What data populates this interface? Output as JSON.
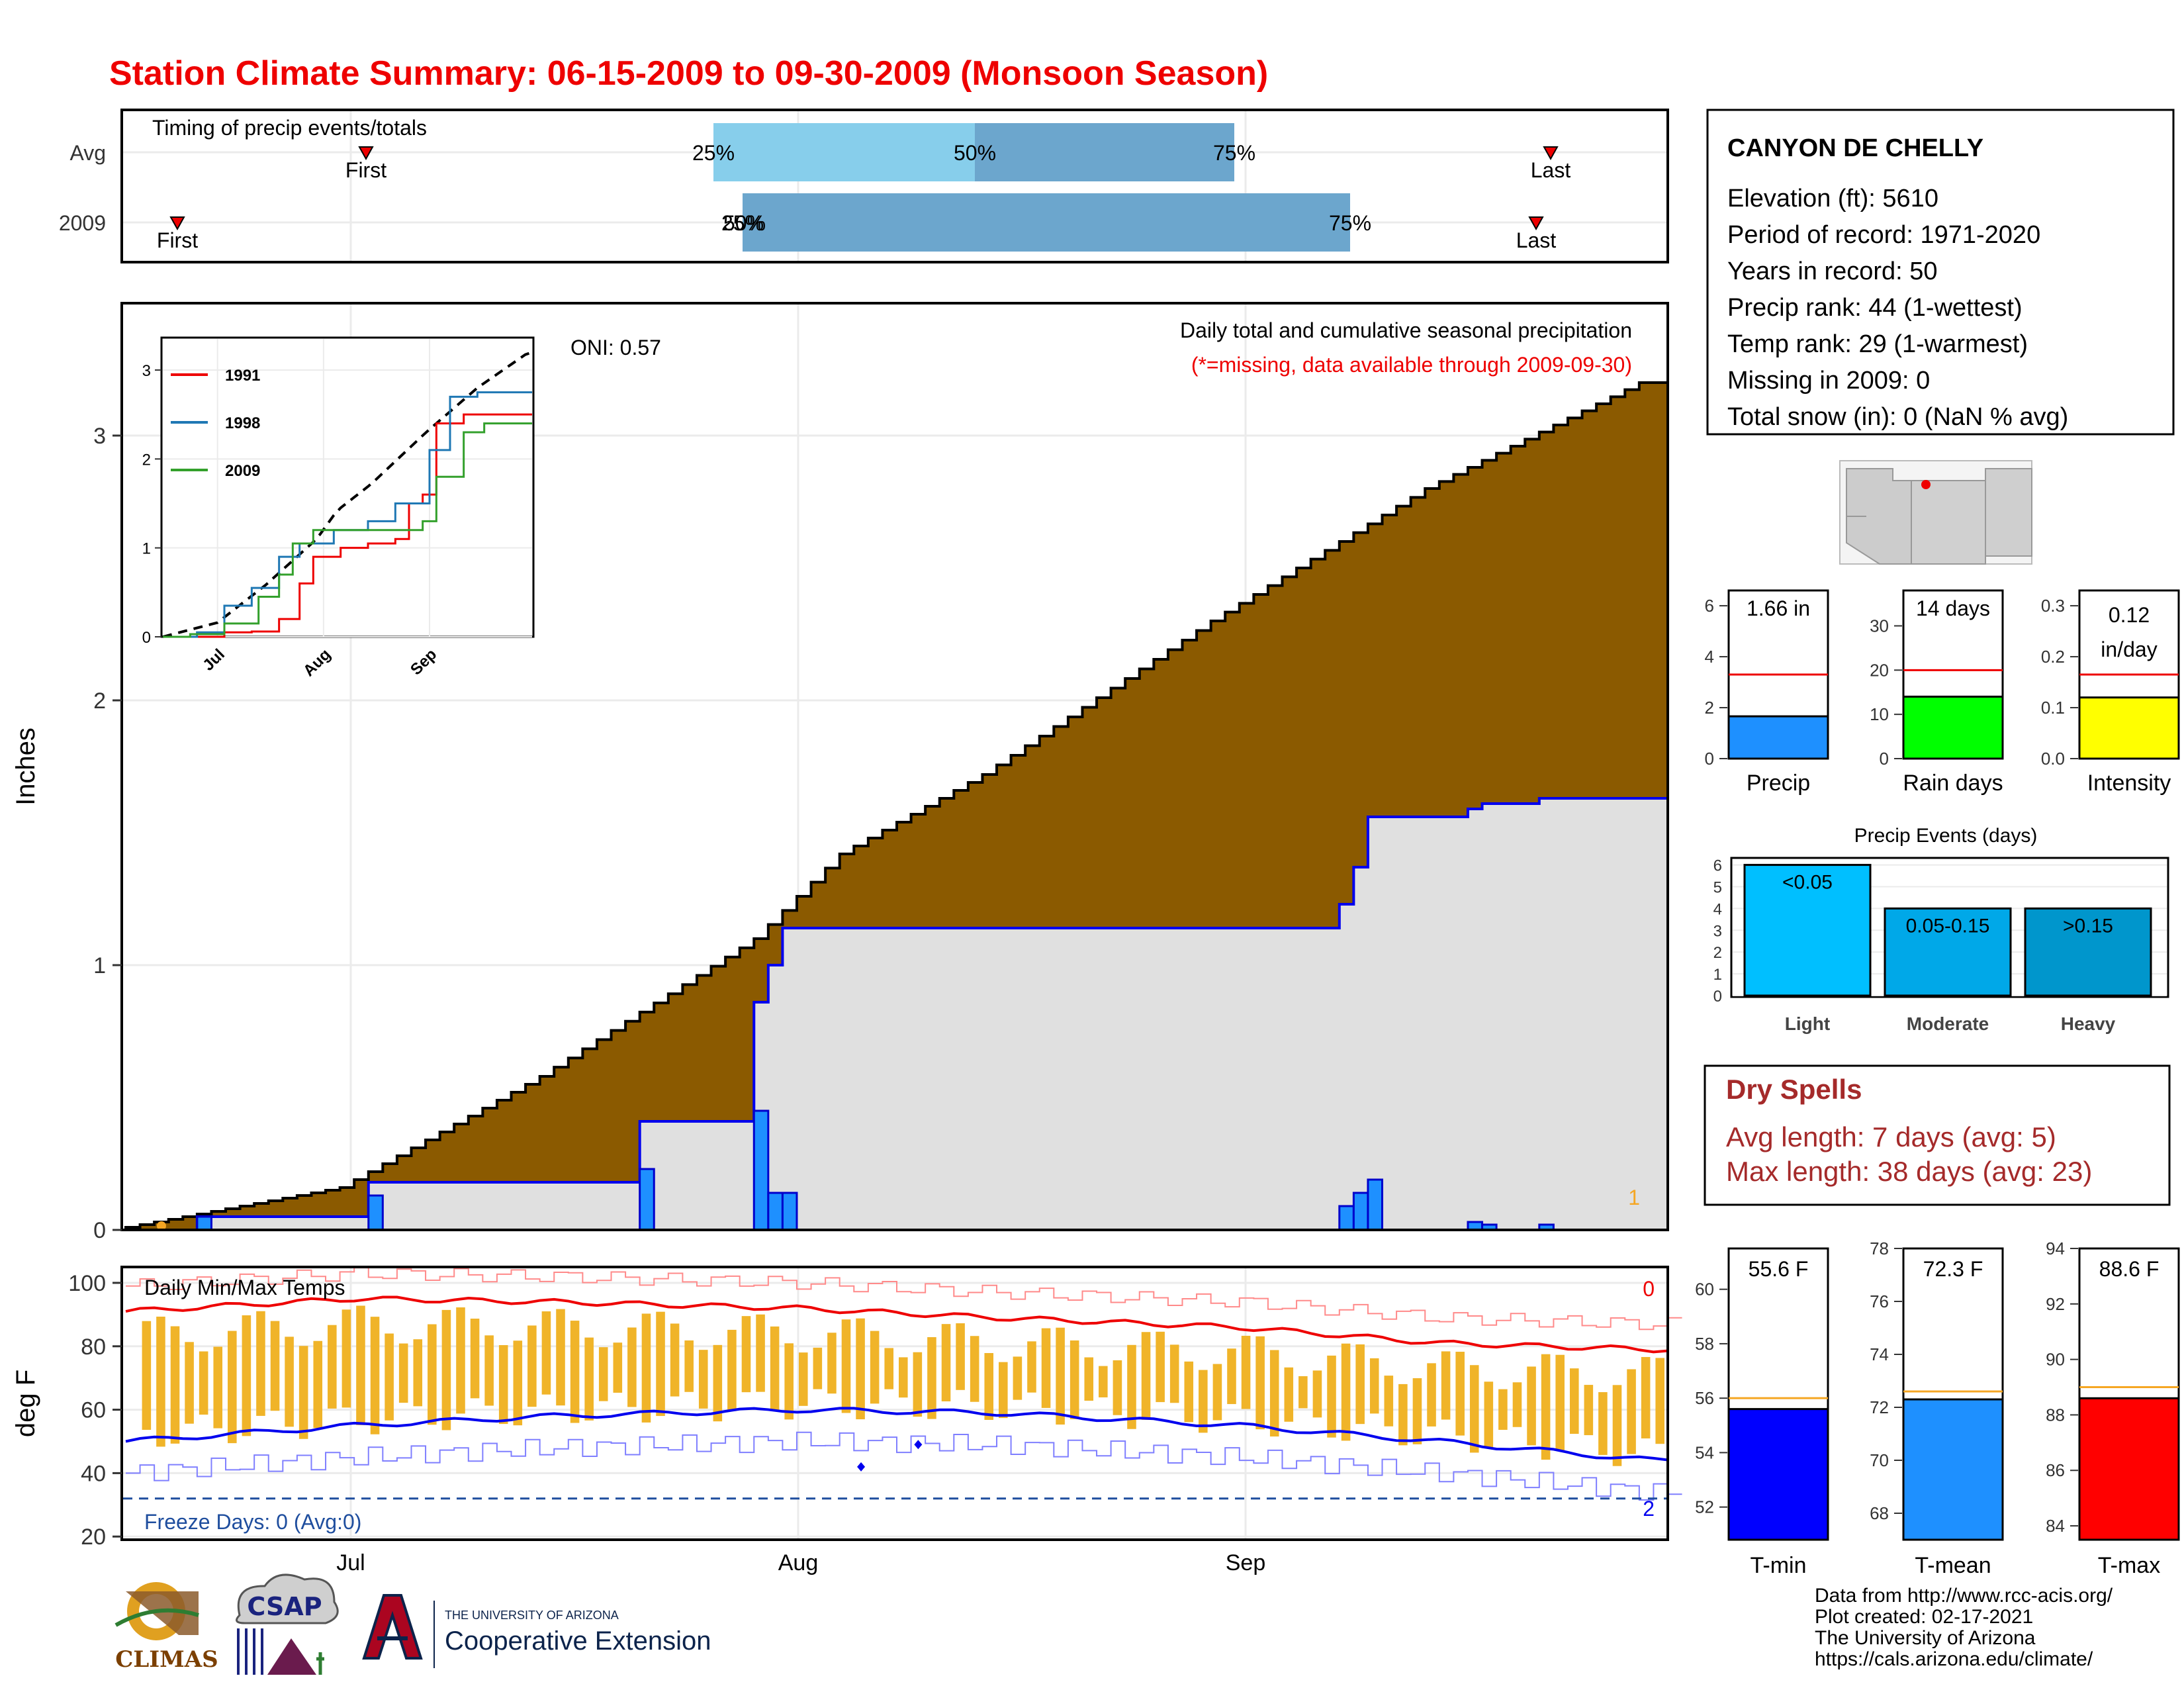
{
  "title": "Station Climate Summary: 06-15-2009 to 09-30-2009 (Monsoon Season)",
  "colors": {
    "title": "#ee0000",
    "cum_fill": "#8b5a00",
    "event_fill": "#e0e0e0",
    "blue_line": "#0000ee",
    "bar_blue": "#1e90ff",
    "temp_bar": "#f0b429",
    "tmax": "#ee0000",
    "tmin": "#0000ee",
    "dry": "#a52a2a"
  },
  "timing": {
    "title": "Timing of precip events/totals",
    "rows": [
      {
        "label": "Avg",
        "first": "First",
        "last": "Last",
        "p25": "25%",
        "p50": "50%",
        "p75": "75%"
      },
      {
        "label": "2009",
        "first": "First",
        "last": "Last",
        "p25": "25%",
        "p50": "50%",
        "p75": "75%"
      }
    ]
  },
  "main": {
    "ylabel": "Inches",
    "y_ticks": [
      "0",
      "1",
      "2",
      "3"
    ],
    "oni": "ONI: 0.57",
    "note_title": "Daily total and cumulative seasonal precipitation",
    "note_missing": "(*=missing, data available through 2009-09-30)",
    "missing_count": "1",
    "inset": {
      "x_ticks": [
        "Jul",
        "Aug",
        "Sep"
      ],
      "y_ticks": [
        "0",
        "1",
        "2",
        "3"
      ],
      "legend": [
        {
          "name": "1991",
          "color": "#ee0000"
        },
        {
          "name": "1998",
          "color": "#1f78b4"
        },
        {
          "name": "2009",
          "color": "#33a02c"
        }
      ]
    }
  },
  "temps": {
    "title": "Daily Min/Max Temps",
    "ylabel": "deg F",
    "y_ticks": [
      "20",
      "40",
      "60",
      "80",
      "100"
    ],
    "freeze": "Freeze Days: 0 (Avg:0)",
    "count_hot": "0",
    "count_cold": "2",
    "x_ticks": [
      "Jul",
      "Aug",
      "Sep"
    ]
  },
  "station": {
    "name": "CANYON DE CHELLY",
    "lines": [
      "Elevation (ft): 5610",
      "Period of record: 1971-2020",
      "Years in record: 50",
      "Precip rank: 44 (1-wettest)",
      "Temp rank: 29 (1-warmest)",
      "Missing in 2009: 0",
      "Total snow (in): 0 (NaN % avg)"
    ]
  },
  "mini_bars": [
    {
      "label": "Precip",
      "value_text": "1.66 in",
      "value": 1.66,
      "avg": 3.3,
      "ymax": 6.6,
      "ticks": [
        "0",
        "2",
        "4",
        "6"
      ],
      "color": "#1e90ff"
    },
    {
      "label": "Rain days",
      "value_text": "14 days",
      "value": 14,
      "avg": 20,
      "ymax": 38,
      "ticks": [
        "0",
        "10",
        "20",
        "30"
      ],
      "color": "#00ff00"
    },
    {
      "label": "Intensity",
      "value_text": "0.12 in/day",
      "value_a": "0.12",
      "value_b": "in/day",
      "value": 0.12,
      "avg": 0.165,
      "ymax": 0.33,
      "ticks": [
        "0.0",
        "0.1",
        "0.2",
        "0.3"
      ],
      "color": "#ffff00"
    }
  ],
  "events": {
    "title": "Precip Events (days)",
    "ticks": [
      "0",
      "1",
      "2",
      "3",
      "4",
      "5",
      "6"
    ],
    "bars": [
      {
        "label": "Light",
        "range": "<0.05",
        "value": 6,
        "color": "#00bfff"
      },
      {
        "label": "Moderate",
        "range": "0.05-0.15",
        "value": 4,
        "color": "#00a8e8"
      },
      {
        "label": "Heavy",
        "range": ">0.15",
        "value": 4,
        "color": "#0096cc"
      }
    ]
  },
  "dry_spells": {
    "title": "Dry Spells",
    "avg": "Avg length: 7 days (avg: 5)",
    "max": "Max length: 38 days (avg: 23)"
  },
  "temp_bars": [
    {
      "label": "T-min",
      "value_text": "55.6 F",
      "value": 55.6,
      "avg": 56.0,
      "ymin": 50.8,
      "ymax": 61.5,
      "ticks": [
        52,
        54,
        56,
        58,
        60
      ],
      "color": "#0000ff"
    },
    {
      "label": "T-mean",
      "value_text": "72.3 F",
      "value": 72.3,
      "avg": 72.6,
      "ymin": 67.0,
      "ymax": 78.0,
      "ticks": [
        68,
        70,
        72,
        74,
        76,
        78
      ],
      "color": "#1e90ff"
    },
    {
      "label": "T-max",
      "value_text": "88.6 F",
      "value": 88.6,
      "avg": 89.0,
      "ymin": 83.5,
      "ymax": 94.0,
      "ticks": [
        84,
        86,
        88,
        90,
        92,
        94
      ],
      "color": "#ff0000"
    }
  ],
  "credits": [
    "Data from http://www.rcc-acis.org/",
    "Plot created: 02-17-2021",
    "The University of Arizona",
    "https://cals.arizona.edu/climate/"
  ],
  "logos": {
    "climas": "CLIMAS",
    "csap": "CSAP",
    "ua_small": "THE UNIVERSITY OF ARIZONA",
    "ua_big": "Cooperative Extension"
  },
  "chart_data": {
    "type": "area",
    "title": "Daily total and cumulative seasonal precipitation",
    "ylabel": "Inches",
    "ylim": [
      0,
      3.5
    ],
    "x_range": [
      "2009-06-15",
      "2009-09-30"
    ],
    "x_ticks": [
      "Jul",
      "Aug",
      "Sep"
    ],
    "series": [
      {
        "name": "",
        "kind": "avg_cumulative",
        "x": [
          "2009-06-15",
          "2009-07-01",
          "2009-07-15",
          "2009-07-30",
          "2009-08-05",
          "2009-08-15",
          "2009-08-31",
          "2009-09-15",
          "2009-09-30"
        ],
        "values": [
          0.0,
          0.16,
          0.58,
          1.1,
          1.42,
          1.72,
          2.3,
          2.8,
          3.2
        ]
      },
      {
        "name": "",
        "kind": "obs_cumulative",
        "x": [
          "2009-06-15",
          "2009-06-20",
          "2009-07-02",
          "2009-07-21",
          "2009-07-29",
          "2009-07-31",
          "2009-09-08",
          "2009-09-09",
          "2009-09-20",
          "2009-09-24",
          "2009-09-30"
        ],
        "values": [
          0.0,
          0.05,
          0.18,
          0.41,
          0.86,
          1.16,
          1.25,
          1.58,
          1.63,
          1.65,
          1.66
        ]
      },
      {
        "name": "",
        "kind": "daily",
        "x": [
          "2009-06-20",
          "2009-07-02",
          "2009-07-21",
          "2009-07-29",
          "2009-07-30",
          "2009-07-31",
          "2009-09-08",
          "2009-09-09",
          "2009-09-10",
          "2009-09-17",
          "2009-09-18",
          "2009-09-22"
        ],
        "values": [
          0.05,
          0.13,
          0.23,
          0.45,
          0.14,
          0.14,
          0.09,
          0.14,
          0.19,
          0.03,
          0.02,
          0.02
        ]
      }
    ],
    "temperature": {
      "ylabel": "deg F",
      "ylim": [
        20,
        105
      ],
      "tmax_avg": [
        91,
        95,
        94,
        92,
        89,
        86,
        81,
        79
      ],
      "tmin_avg": [
        50,
        55,
        58,
        60,
        59,
        55,
        50,
        44
      ],
      "x": [
        "2009-06-15",
        "2009-07-01",
        "2009-07-15",
        "2009-08-01",
        "2009-08-15",
        "2009-09-01",
        "2009-09-15",
        "2009-09-30"
      ]
    }
  }
}
